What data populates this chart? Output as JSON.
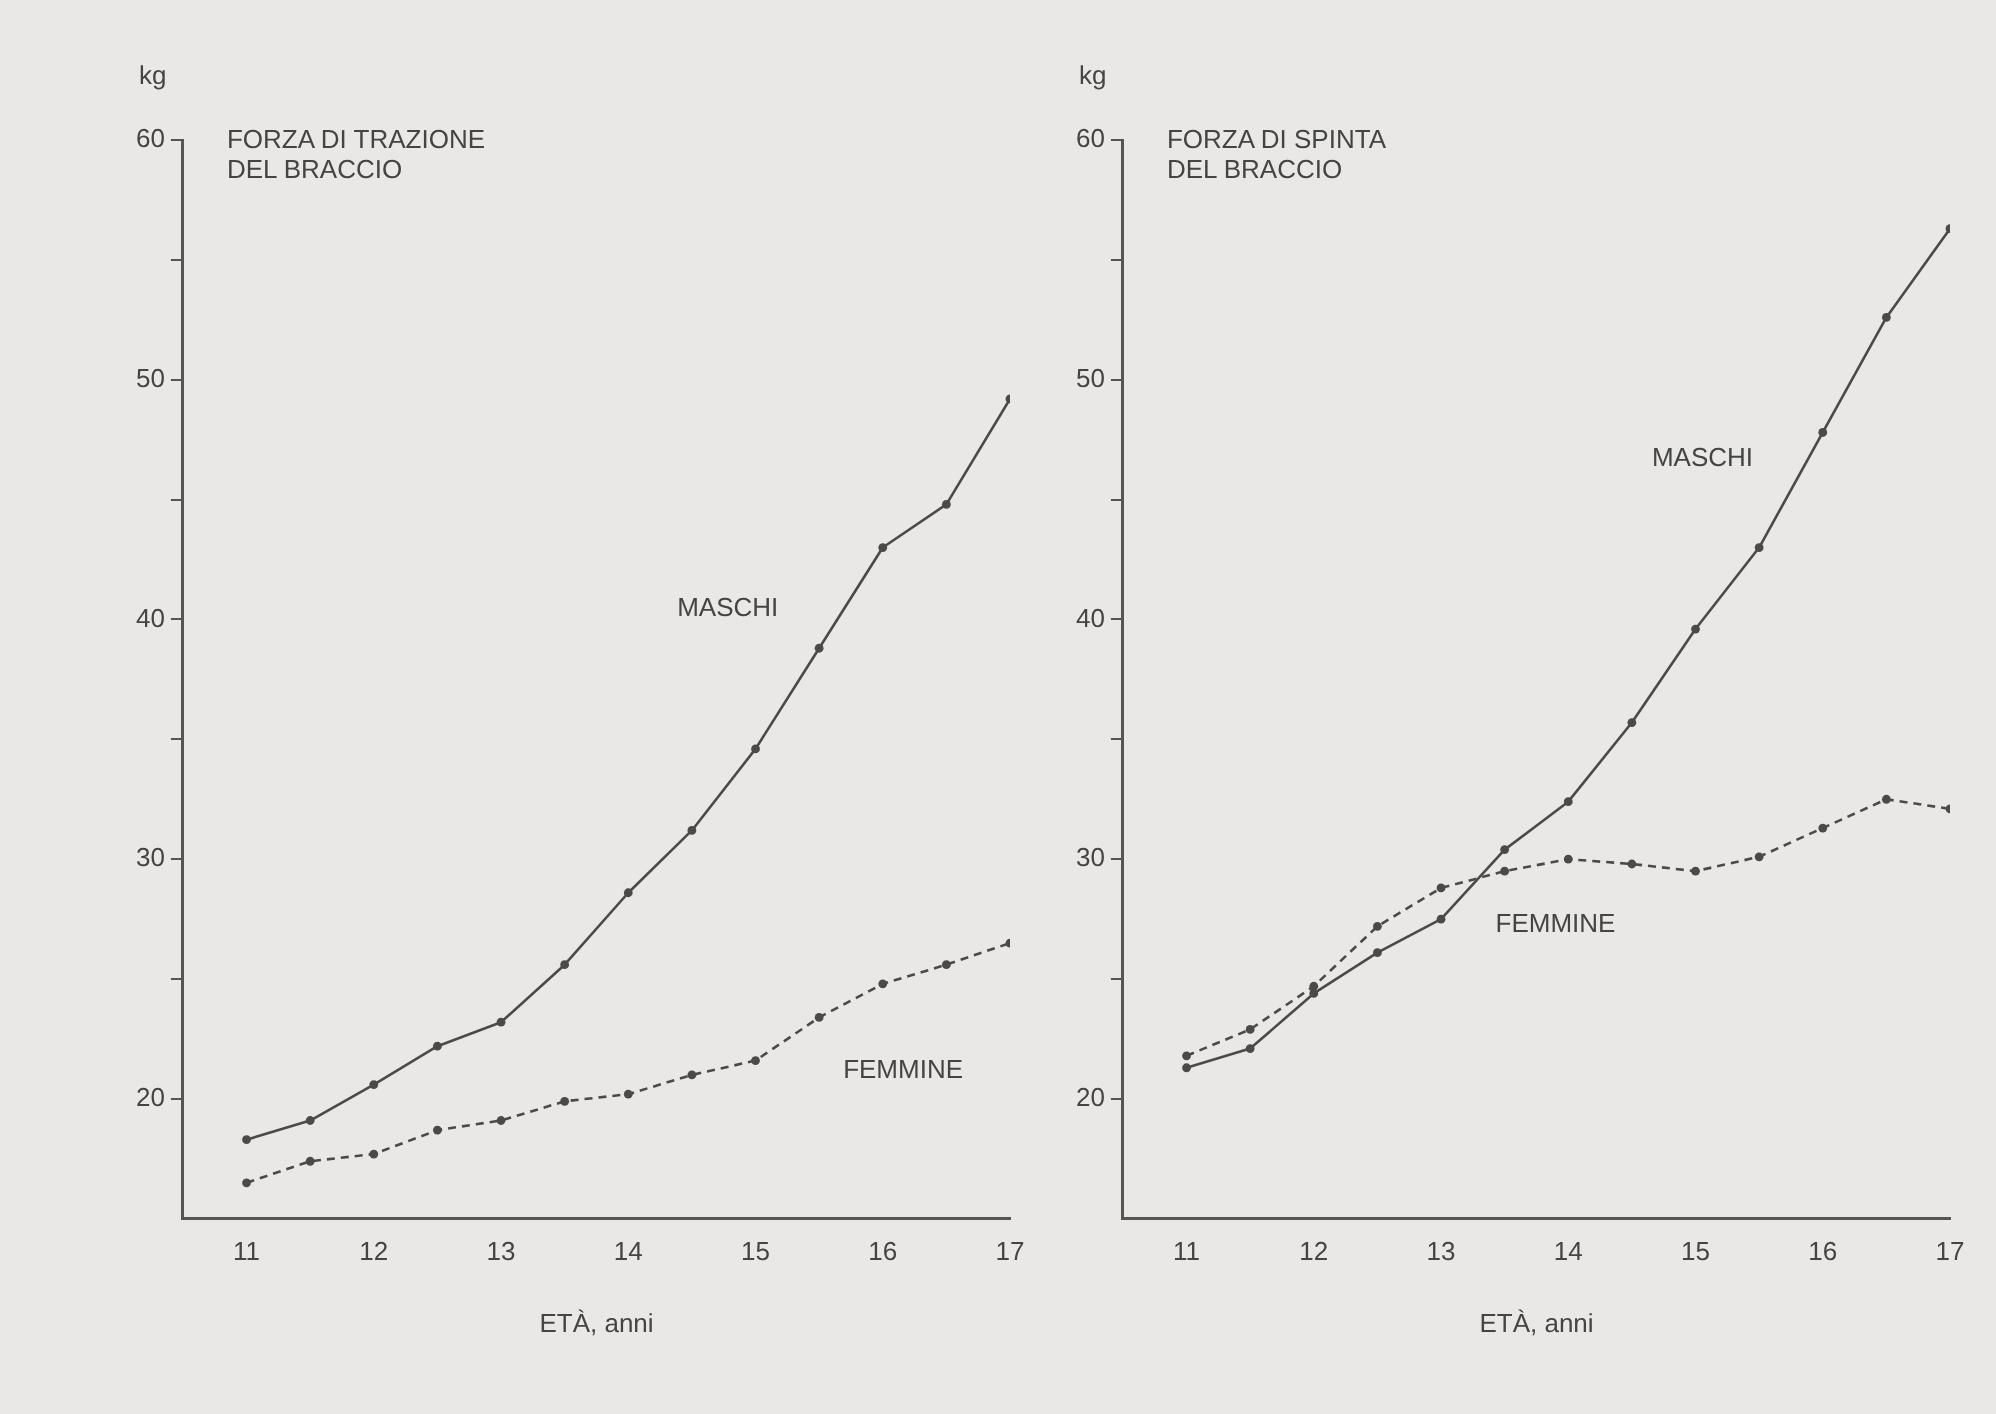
{
  "chart_data": [
    {
      "type": "line",
      "title": "FORZA DI TRAZIONE\nDEL BRACCIO",
      "ylabel": "kg",
      "xlabel": "ETÀ, anni",
      "marker": "circle",
      "x": [
        11,
        11.5,
        12,
        12.5,
        13,
        13.5,
        14,
        14.5,
        15,
        15.5,
        16,
        16.5,
        17
      ],
      "series": [
        {
          "name": "MASCHI",
          "color": "#4a4a4a",
          "line_style": "solid",
          "values": [
            18.3,
            19.1,
            20.6,
            22.2,
            23.2,
            25.6,
            28.6,
            31.2,
            34.6,
            38.8,
            43.0,
            44.8,
            49.2
          ]
        },
        {
          "name": "FEMMINE",
          "color": "#4a4a4a",
          "line_style": "dashed",
          "values": [
            16.5,
            17.4,
            17.7,
            18.7,
            19.1,
            19.9,
            20.2,
            21.0,
            21.6,
            23.4,
            24.8,
            25.6,
            26.5
          ]
        }
      ],
      "xlim": [
        10.5,
        17
      ],
      "xticks": [
        11,
        12,
        13,
        14,
        15,
        16,
        17
      ],
      "ylim": [
        15,
        60
      ],
      "yticks": [
        20,
        {
          "value": 25,
          "label": null
        },
        30,
        {
          "value": 35,
          "label": null
        },
        40,
        {
          "value": 45,
          "label": null
        },
        50,
        {
          "value": 55,
          "label": null
        },
        60
      ]
    },
    {
      "type": "line",
      "title": "FORZA DI SPINTA\nDEL BRACCIO",
      "ylabel": "kg",
      "xlabel": "ETÀ, anni",
      "marker": "circle",
      "x": [
        11,
        11.5,
        12,
        12.5,
        13,
        13.5,
        14,
        14.5,
        15,
        15.5,
        16,
        16.5,
        17
      ],
      "series": [
        {
          "name": "MASCHI",
          "color": "#4a4a4a",
          "line_style": "solid",
          "values": [
            21.3,
            22.1,
            24.4,
            26.1,
            27.5,
            30.4,
            32.4,
            35.7,
            39.6,
            43.0,
            47.8,
            52.6,
            56.3
          ]
        },
        {
          "name": "FEMMINE",
          "color": "#4a4a4a",
          "line_style": "dashed",
          "values": [
            21.8,
            22.9,
            24.7,
            27.2,
            28.8,
            29.5,
            30.0,
            29.8,
            29.5,
            30.1,
            31.3,
            32.5,
            32.1
          ]
        }
      ],
      "xlim": [
        10.5,
        17
      ],
      "xticks": [
        11,
        12,
        13,
        14,
        15,
        16,
        17
      ],
      "ylim": [
        15,
        60
      ],
      "yticks": [
        20,
        {
          "value": 25,
          "label": null
        },
        30,
        {
          "value": 35,
          "label": null
        },
        40,
        {
          "value": 45,
          "label": null
        },
        50,
        {
          "value": 55,
          "label": null
        },
        60
      ]
    }
  ]
}
